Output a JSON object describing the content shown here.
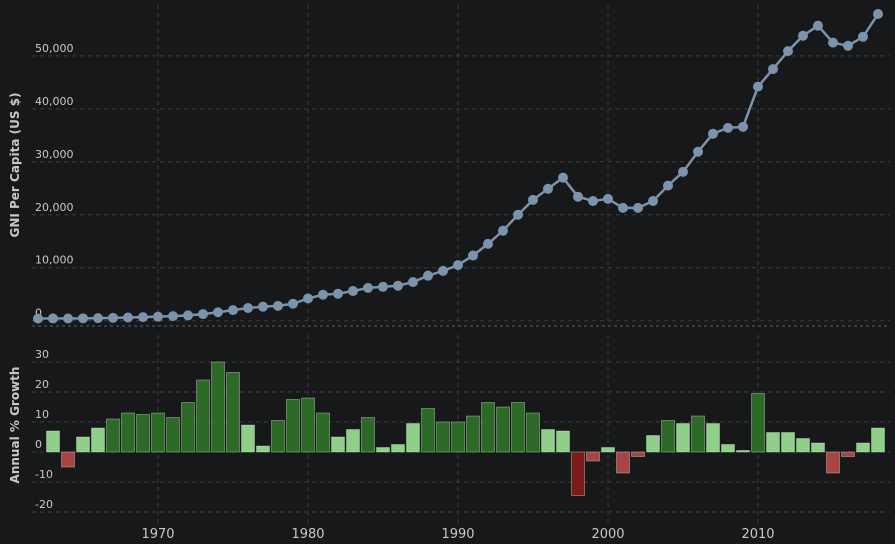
{
  "chart_data": [
    {
      "type": "line",
      "y_label": "GNI Per Capita (US $)",
      "color": "#7b93ab",
      "x": [
        1962,
        1963,
        1964,
        1965,
        1966,
        1967,
        1968,
        1969,
        1970,
        1971,
        1972,
        1973,
        1974,
        1975,
        1976,
        1977,
        1978,
        1979,
        1980,
        1981,
        1982,
        1983,
        1984,
        1985,
        1986,
        1987,
        1988,
        1989,
        1990,
        1991,
        1992,
        1993,
        1994,
        1995,
        1996,
        1997,
        1998,
        1999,
        2000,
        2001,
        2002,
        2003,
        2004,
        2005,
        2006,
        2007,
        2008,
        2009,
        2010,
        2011,
        2012,
        2013,
        2014,
        2015,
        2016,
        2017,
        2018
      ],
      "values": [
        400,
        430,
        420,
        450,
        490,
        540,
        600,
        680,
        760,
        860,
        1000,
        1250,
        1600,
        2000,
        2400,
        2650,
        2800,
        3200,
        4200,
        4900,
        5100,
        5600,
        6200,
        6400,
        6600,
        7300,
        8500,
        9400,
        10500,
        12300,
        14500,
        17000,
        20000,
        22800,
        24900,
        27000,
        23400,
        22600,
        23000,
        21300,
        21300,
        22600,
        25500,
        28100,
        31900,
        35300,
        36400,
        36600,
        44200,
        47500,
        50900,
        53800,
        55700,
        52500,
        51900,
        53600,
        57900
      ],
      "xlim": [
        1961.6,
        2018.8
      ],
      "ylim": [
        -1000,
        59600
      ],
      "yticks": [
        0,
        {
          "value": 10000,
          "label": "10,000"
        },
        {
          "value": 20000,
          "label": "20,000"
        },
        {
          "value": 30000,
          "label": "30,000"
        },
        {
          "value": 40000,
          "label": "40,000"
        },
        {
          "value": 50000,
          "label": "50,000"
        }
      ],
      "grid": true
    },
    {
      "type": "bar",
      "y_label": "Annual % Growth",
      "x": [
        1963,
        1964,
        1965,
        1966,
        1967,
        1968,
        1969,
        1970,
        1971,
        1972,
        1973,
        1974,
        1975,
        1976,
        1977,
        1978,
        1979,
        1980,
        1981,
        1982,
        1983,
        1984,
        1985,
        1986,
        1987,
        1988,
        1989,
        1990,
        1991,
        1992,
        1993,
        1994,
        1995,
        1996,
        1997,
        1998,
        1999,
        2000,
        2001,
        2002,
        2003,
        2004,
        2005,
        2006,
        2007,
        2008,
        2009,
        2010,
        2011,
        2012,
        2013,
        2014,
        2015,
        2016,
        2017,
        2018
      ],
      "values": [
        7,
        -5,
        5,
        8,
        11,
        13,
        12.5,
        13,
        11.5,
        16.5,
        24,
        30,
        26.5,
        9,
        2,
        10.5,
        17.5,
        18,
        13,
        5,
        7.5,
        11.5,
        1.5,
        2.5,
        9.5,
        14.5,
        10,
        10,
        12,
        16.5,
        15,
        16.5,
        13,
        7.5,
        7,
        -14.5,
        -3,
        1.5,
        -7,
        -1.5,
        5.5,
        10.5,
        9.5,
        12,
        9.5,
        2.5,
        0.5,
        19.5,
        6.5,
        6.5,
        4.5,
        3,
        -7,
        -1.5,
        3,
        8
      ],
      "colors": [
        "#8fcf8a",
        "#a94444",
        "#8fcf8a",
        "#8fcf8a",
        "#2d6a27",
        "#2d6a27",
        "#2d6a27",
        "#2d6a27",
        "#2d6a27",
        "#2d6a27",
        "#2d6a27",
        "#2d6a27",
        "#2d6a27",
        "#8fcf8a",
        "#8fcf8a",
        "#2d6a27",
        "#2d6a27",
        "#2d6a27",
        "#2d6a27",
        "#8fcf8a",
        "#8fcf8a",
        "#2d6a27",
        "#8fcf8a",
        "#8fcf8a",
        "#8fcf8a",
        "#2d6a27",
        "#2d6a27",
        "#2d6a27",
        "#2d6a27",
        "#2d6a27",
        "#2d6a27",
        "#2d6a27",
        "#2d6a27",
        "#8fcf8a",
        "#8fcf8a",
        "#7d1a1a",
        "#a94444",
        "#8fcf8a",
        "#a94444",
        "#a94444",
        "#8fcf8a",
        "#2d6a27",
        "#8fcf8a",
        "#2d6a27",
        "#8fcf8a",
        "#8fcf8a",
        "#8fcf8a",
        "#2d6a27",
        "#8fcf8a",
        "#8fcf8a",
        "#8fcf8a",
        "#8fcf8a",
        "#a94444",
        "#a94444",
        "#8fcf8a",
        "#8fcf8a"
      ],
      "xlim": [
        1961.6,
        2018.8
      ],
      "ylim": [
        -24,
        39
      ],
      "yticks": [
        -20,
        -10,
        0,
        10,
        20,
        30
      ],
      "xticks": [
        1970,
        1980,
        1990,
        2000,
        2010
      ],
      "grid": true
    }
  ]
}
